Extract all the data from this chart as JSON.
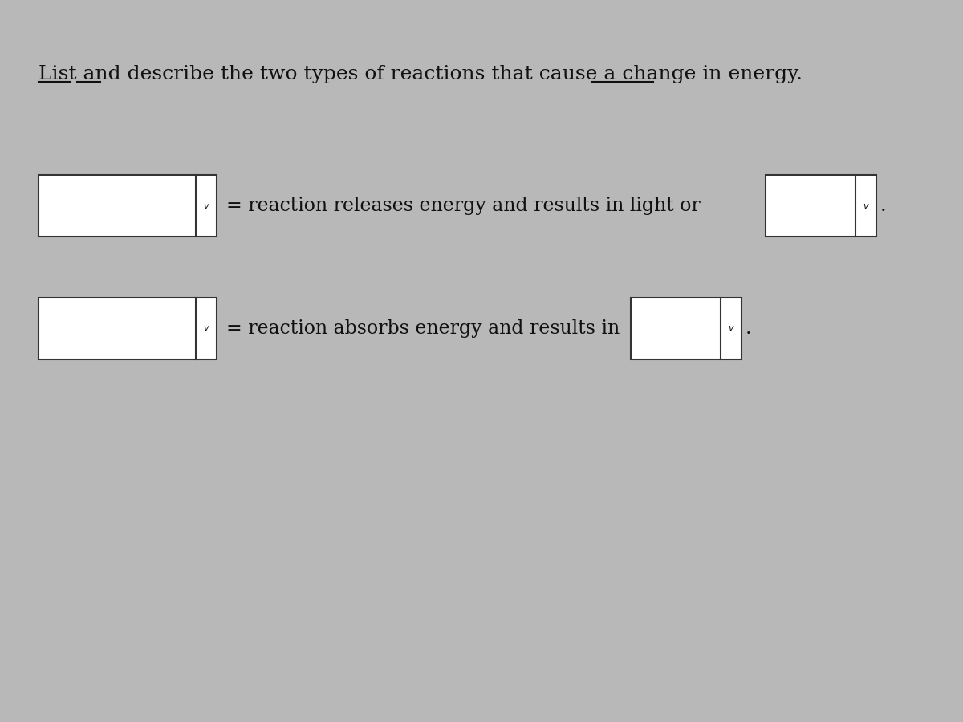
{
  "title_full": "List and describe the two types of reactions that cause a change in energy.",
  "row1_text": "= reaction releases energy and results in light or",
  "row2_text": "= reaction absorbs energy and results in",
  "bg_color": "#b8b8b8",
  "box_color": "#ffffff",
  "box_border": "#333333",
  "text_color": "#111111",
  "title_fontsize": 18,
  "row_fontsize": 17,
  "fig_width": 12,
  "fig_height": 9
}
